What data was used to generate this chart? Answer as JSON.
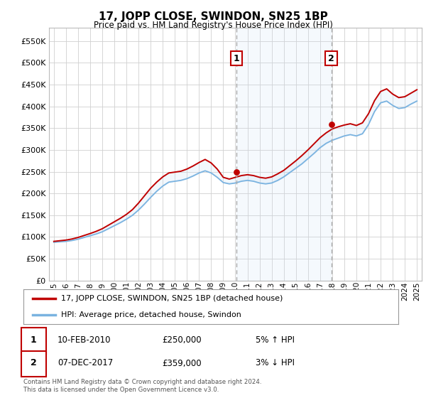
{
  "title": "17, JOPP CLOSE, SWINDON, SN25 1BP",
  "subtitle": "Price paid vs. HM Land Registry's House Price Index (HPI)",
  "footer": "Contains HM Land Registry data © Crown copyright and database right 2024.\nThis data is licensed under the Open Government Licence v3.0.",
  "legend_line1": "17, JOPP CLOSE, SWINDON, SN25 1BP (detached house)",
  "legend_line2": "HPI: Average price, detached house, Swindon",
  "transaction1_date": "10-FEB-2010",
  "transaction1_price": "£250,000",
  "transaction1_hpi": "5% ↑ HPI",
  "transaction1_year": 2010.1,
  "transaction1_value": 250000,
  "transaction2_date": "07-DEC-2017",
  "transaction2_price": "£359,000",
  "transaction2_hpi": "3% ↓ HPI",
  "transaction2_year": 2017.92,
  "transaction2_value": 359000,
  "hpi_color": "#7ab3e0",
  "price_color": "#c00000",
  "vline_color": "#aaaaaa",
  "shade_color": "#cce0f5",
  "background_color": "#ffffff",
  "grid_color": "#d0d0d0",
  "ylim": [
    0,
    580000
  ],
  "yticks": [
    0,
    50000,
    100000,
    150000,
    200000,
    250000,
    300000,
    350000,
    400000,
    450000,
    500000,
    550000
  ],
  "xlim_start": 1994.6,
  "xlim_end": 2025.4,
  "xtick_years": [
    1995,
    1996,
    1997,
    1998,
    1999,
    2000,
    2001,
    2002,
    2003,
    2004,
    2005,
    2006,
    2007,
    2008,
    2009,
    2010,
    2011,
    2012,
    2013,
    2014,
    2015,
    2016,
    2017,
    2018,
    2019,
    2020,
    2021,
    2022,
    2023,
    2024,
    2025
  ],
  "hpi_years": [
    1995,
    1995.5,
    1996,
    1996.5,
    1997,
    1997.5,
    1998,
    1998.5,
    1999,
    1999.5,
    2000,
    2000.5,
    2001,
    2001.5,
    2002,
    2002.5,
    2003,
    2003.5,
    2004,
    2004.5,
    2005,
    2005.5,
    2006,
    2006.5,
    2007,
    2007.5,
    2008,
    2008.5,
    2009,
    2009.5,
    2010,
    2010.5,
    2011,
    2011.5,
    2012,
    2012.5,
    2013,
    2013.5,
    2014,
    2014.5,
    2015,
    2015.5,
    2016,
    2016.5,
    2017,
    2017.5,
    2018,
    2018.5,
    2019,
    2019.5,
    2020,
    2020.5,
    2021,
    2021.5,
    2022,
    2022.5,
    2023,
    2023.5,
    2024,
    2024.5,
    2025
  ],
  "hpi_values": [
    88000,
    89000,
    90000,
    92000,
    95000,
    99000,
    103000,
    107000,
    112000,
    119000,
    126000,
    133000,
    141000,
    150000,
    162000,
    176000,
    191000,
    205000,
    217000,
    226000,
    228000,
    230000,
    234000,
    240000,
    247000,
    252000,
    247000,
    237000,
    225000,
    222000,
    224000,
    228000,
    230000,
    228000,
    224000,
    222000,
    224000,
    230000,
    238000,
    248000,
    258000,
    268000,
    280000,
    292000,
    305000,
    315000,
    322000,
    327000,
    332000,
    335000,
    332000,
    337000,
    358000,
    388000,
    408000,
    412000,
    402000,
    395000,
    397000,
    405000,
    412000
  ],
  "price_values": [
    90000,
    91500,
    93000,
    95500,
    99000,
    103500,
    108000,
    113000,
    119000,
    127000,
    135000,
    143000,
    152000,
    163000,
    178000,
    195000,
    212000,
    226000,
    238000,
    247000,
    249000,
    251000,
    256000,
    263000,
    271000,
    278000,
    270000,
    256000,
    237000,
    233000,
    237000,
    241000,
    243000,
    241000,
    237000,
    235000,
    238000,
    245000,
    253000,
    264000,
    275000,
    287000,
    300000,
    314000,
    328000,
    339000,
    348000,
    353000,
    357000,
    360000,
    356000,
    362000,
    383000,
    413000,
    434000,
    440000,
    428000,
    420000,
    422000,
    430000,
    438000
  ]
}
